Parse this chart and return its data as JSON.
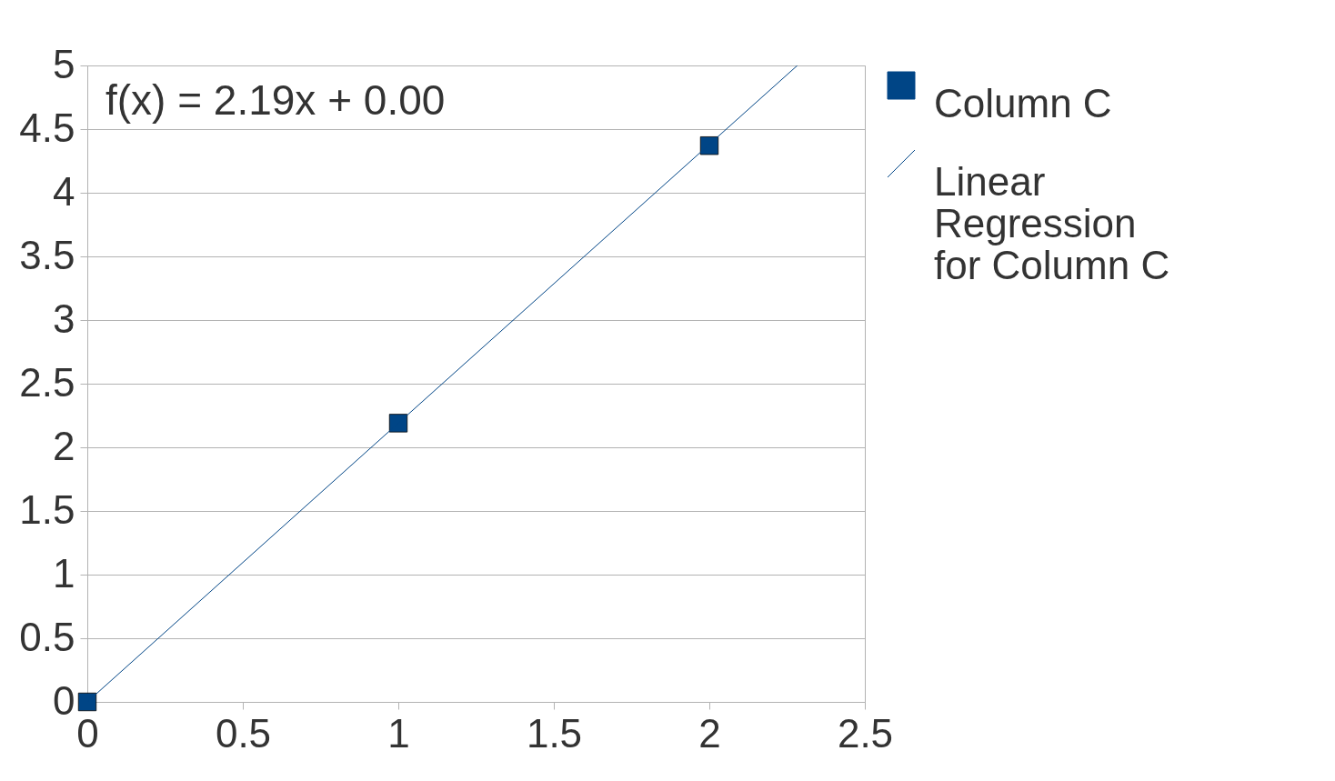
{
  "chart_data": {
    "type": "scatter",
    "annotations": [
      "f(x) = 2.19x + 0.00"
    ],
    "xlim": [
      0,
      2.5
    ],
    "xticks": [
      0,
      0.5,
      1,
      1.5,
      2,
      2.5
    ],
    "ylim": [
      0,
      5
    ],
    "yticks": [
      0,
      0.5,
      1,
      1.5,
      2,
      2.5,
      3,
      3.5,
      4,
      4.5,
      5
    ],
    "grid": "y",
    "legend": "right",
    "series": [
      {
        "name": "Column C",
        "color": "#004586",
        "marker": "square",
        "x": [
          0,
          1,
          2
        ],
        "values": [
          0,
          2.19,
          4.37
        ]
      },
      {
        "name": "Linear Regression for Column C",
        "color": "#004586",
        "type": "line",
        "marker": "none",
        "line_style": "solid",
        "x": [
          0,
          2.283
        ],
        "values": [
          0,
          5
        ]
      }
    ]
  }
}
